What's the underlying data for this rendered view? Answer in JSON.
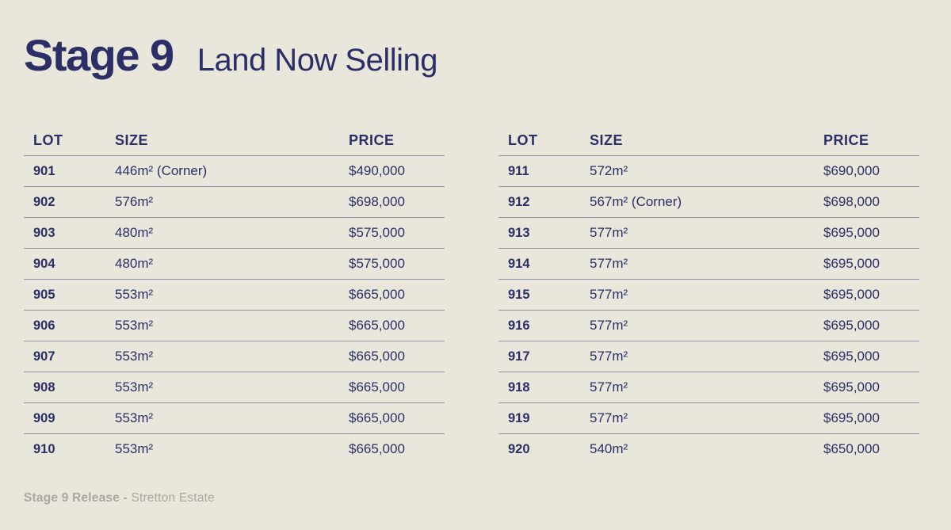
{
  "slide": {
    "title": "Stage 9",
    "subtitle": "Land Now Selling",
    "footer_bold": "Stage 9 Release -",
    "footer_regular": "Stretton Estate"
  },
  "colors": {
    "background": "#e9e7db",
    "navy_text": "#2c2e66",
    "divider_line": "#9092aa",
    "footer_gray": "#a8a8a0"
  },
  "tables": [
    {
      "columns": [
        "LOT",
        "SIZE",
        "PRICE"
      ],
      "rows": [
        {
          "lot": "901",
          "size": "446m² (Corner)",
          "price": "$490,000"
        },
        {
          "lot": "902",
          "size": "576m²",
          "price": "$698,000"
        },
        {
          "lot": "903",
          "size": "480m²",
          "price": "$575,000"
        },
        {
          "lot": "904",
          "size": "480m²",
          "price": "$575,000"
        },
        {
          "lot": "905",
          "size": "553m²",
          "price": "$665,000"
        },
        {
          "lot": "906",
          "size": "553m²",
          "price": "$665,000"
        },
        {
          "lot": "907",
          "size": "553m²",
          "price": "$665,000"
        },
        {
          "lot": "908",
          "size": "553m²",
          "price": "$665,000"
        },
        {
          "lot": "909",
          "size": "553m²",
          "price": "$665,000"
        },
        {
          "lot": "910",
          "size": "553m²",
          "price": "$665,000"
        }
      ]
    },
    {
      "columns": [
        "LOT",
        "SIZE",
        "PRICE"
      ],
      "rows": [
        {
          "lot": "911",
          "size": "572m²",
          "price": "$690,000"
        },
        {
          "lot": "912",
          "size": "567m² (Corner)",
          "price": "$698,000"
        },
        {
          "lot": "913",
          "size": "577m²",
          "price": "$695,000"
        },
        {
          "lot": "914",
          "size": "577m²",
          "price": "$695,000"
        },
        {
          "lot": "915",
          "size": "577m²",
          "price": "$695,000"
        },
        {
          "lot": "916",
          "size": "577m²",
          "price": "$695,000"
        },
        {
          "lot": "917",
          "size": "577m²",
          "price": "$695,000"
        },
        {
          "lot": "918",
          "size": "577m²",
          "price": "$695,000"
        },
        {
          "lot": "919",
          "size": "577m²",
          "price": "$695,000"
        },
        {
          "lot": "920",
          "size": "540m²",
          "price": "$650,000"
        }
      ]
    }
  ]
}
